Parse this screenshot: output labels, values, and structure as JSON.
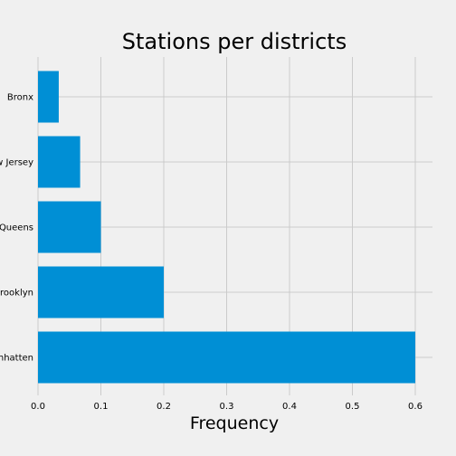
{
  "chart_data": {
    "type": "bar",
    "orientation": "horizontal",
    "title": "Stations per districts",
    "xlabel": "Frequency",
    "ylabel": "",
    "categories": [
      "Manhatten",
      "Brooklyn",
      "Queens",
      "New Jersey",
      "Bronx"
    ],
    "values": [
      0.6,
      0.2,
      0.1,
      0.067,
      0.033
    ],
    "xlim": [
      0,
      0.63
    ],
    "xticks": [
      "0.0",
      "0.1",
      "0.2",
      "0.3",
      "0.4",
      "0.5",
      "0.6"
    ],
    "grid": true,
    "legend": "none"
  },
  "colors": {
    "background": "#f0f0f0",
    "bar": "#008fd5",
    "grid": "#cbcbcb"
  }
}
